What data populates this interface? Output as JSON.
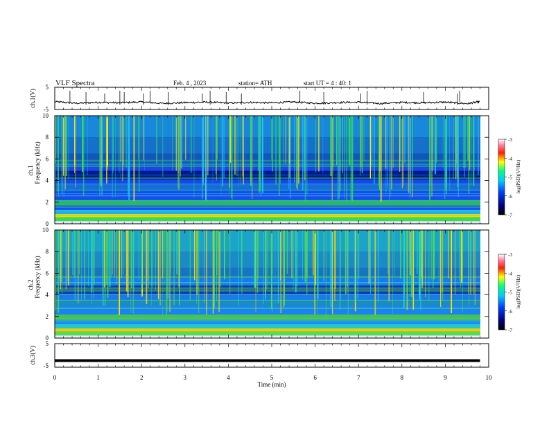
{
  "header": {
    "title": "VLF  Spectra",
    "date": "Feb. 4 ,  2023",
    "station": "station= ATH",
    "start": "start  UT  =  4 : 40: 1"
  },
  "chart_data": [
    {
      "type": "line",
      "panel": "ch1-waveform",
      "ylabel": "ch.1(V)",
      "ylim": [
        -5,
        5
      ],
      "ytick_labels": [
        "5",
        "-5"
      ],
      "xlim": [
        0,
        10
      ],
      "x": [
        0,
        0.5,
        1,
        1.5,
        2,
        2.5,
        3,
        3.5,
        4,
        4.5,
        5,
        5.5,
        6,
        6.5,
        7,
        7.5,
        8,
        8.5,
        9,
        9.5,
        9.8
      ],
      "y": [
        -1.5,
        -2.2,
        -1.8,
        -2.0,
        -1.6,
        -2.3,
        -1.9,
        -1.7,
        -2.1,
        -1.8,
        -2.0,
        -1.6,
        -2.2,
        -1.9,
        -1.7,
        -2.3,
        -1.8,
        -2.0,
        -1.7,
        -2.4,
        -1.4
      ]
    },
    {
      "type": "heatmap",
      "panel": "ch1-spectrogram",
      "ylabel": "ch.1 Frequency (kHz)",
      "ylim": [
        0,
        10
      ],
      "ytick_labels": [
        "0",
        "2",
        "4",
        "6",
        "8",
        "10"
      ],
      "xlim": [
        0,
        10
      ],
      "colorbar": {
        "label": "log(PSD)(V²/Hz)",
        "range": [
          -7,
          -3
        ],
        "tick_labels": [
          "-3",
          "-4",
          "-5",
          "-6",
          "-7"
        ]
      }
    },
    {
      "type": "heatmap",
      "panel": "ch2-spectrogram",
      "ylabel": "ch.2 Frequency (kHz)",
      "ylim": [
        0,
        10
      ],
      "ytick_labels": [
        "0",
        "2",
        "4",
        "6",
        "8",
        "10"
      ],
      "xlim": [
        0,
        10
      ],
      "colorbar": {
        "label": "log(PSD)(V²/Hz)",
        "range": [
          -7,
          -3
        ],
        "tick_labels": [
          "-3",
          "-4",
          "-5",
          "-6",
          "-7"
        ]
      }
    },
    {
      "type": "line",
      "panel": "ch3-waveform",
      "ylabel": "ch.3(V)",
      "ylim": [
        -5,
        5
      ],
      "ytick_labels": [
        "5",
        "-5"
      ],
      "xlim": [
        0,
        10
      ],
      "x": [
        0,
        9.8
      ],
      "y": [
        -2.2,
        -2.2
      ]
    }
  ],
  "xaxis": {
    "label": "Time  (min)",
    "tick_labels": [
      "0",
      "1",
      "2",
      "3",
      "4",
      "5",
      "6",
      "7",
      "8",
      "9",
      "10"
    ]
  },
  "spectrogram_colors": {
    "ch1": {
      "low": "#001a8c",
      "mid": "#1a50ff",
      "band": "#20c0ff",
      "high": "#33dd55",
      "peak": "#ffee00"
    },
    "ch2": {
      "low": "#0a3ab8",
      "mid": "#1a8aff",
      "band": "#22d8d0",
      "high": "#55e044",
      "peak": "#ffdd00"
    }
  }
}
